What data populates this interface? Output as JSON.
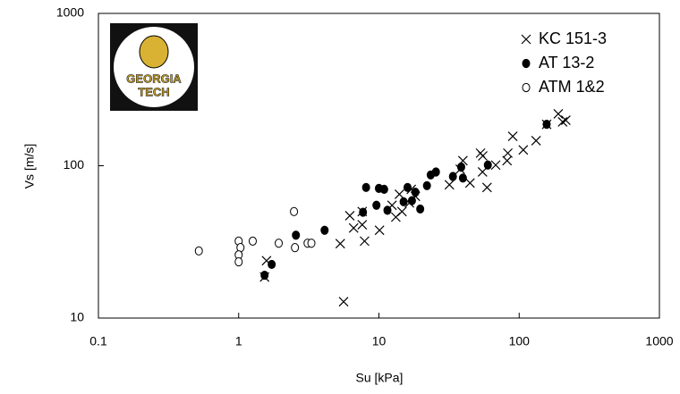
{
  "chart_data": {
    "type": "scatter",
    "x_label": "Su [kPa]",
    "y_label": "Vs [m/s]",
    "xscale": "log",
    "yscale": "log",
    "xlim": [
      0.1,
      1000
    ],
    "ylim": [
      10,
      1000
    ],
    "xticks": [
      0.1,
      1,
      10,
      100,
      1000
    ],
    "yticks": [
      10,
      100,
      1000
    ],
    "legend": "upper right",
    "logo_text": [
      "GEORGIA",
      "TECH"
    ],
    "series": [
      {
        "name": "KC 151-3",
        "color": "#000000",
        "marker": "x",
        "x": [
          1.53,
          1.58,
          5.3,
          5.6,
          6.2,
          6.6,
          7.6,
          7.9,
          7.6,
          10.1,
          12.4,
          13.2,
          14,
          14.6,
          16.5,
          17,
          18.2,
          31.8,
          38,
          39.7,
          44.6,
          54.8,
          53,
          55,
          59,
          68,
          82,
          83,
          90,
          107,
          132,
          157,
          190,
          204,
          215
        ],
        "values": [
          18.6,
          23.8,
          30.8,
          12.8,
          47,
          39,
          41,
          32,
          50,
          37.7,
          55,
          46,
          65,
          50,
          57,
          70,
          63,
          75,
          94.8,
          108,
          77,
          91,
          121,
          116,
          72,
          101,
          108,
          121,
          156,
          127,
          146,
          187,
          219,
          194,
          199
        ]
      },
      {
        "name": "AT 13-2",
        "color": "#000000",
        "marker": "filled",
        "x": [
          1.53,
          1.72,
          2.56,
          4.1,
          8.1,
          7.7,
          9.6,
          10,
          10.9,
          11.5,
          15,
          16,
          17.2,
          18.2,
          19.7,
          22,
          23.4,
          25.5,
          33.7,
          38.6,
          39.7,
          59.8,
          157
        ],
        "values": [
          19.1,
          22.5,
          35,
          37.7,
          72,
          49.5,
          55,
          71,
          70,
          51,
          58,
          72,
          59,
          67,
          52,
          74,
          87,
          91,
          85,
          98,
          83,
          101,
          187
        ]
      },
      {
        "name": "ATM 1&2",
        "color": "#000000",
        "marker": "open",
        "x": [
          0.52,
          1,
          1.03,
          1,
          1,
          1.26,
          1.93,
          2.48,
          2.52,
          3.1,
          3.3
        ],
        "values": [
          27.6,
          32,
          29,
          26,
          23.4,
          32,
          31,
          50,
          29,
          31,
          31
        ]
      }
    ]
  }
}
